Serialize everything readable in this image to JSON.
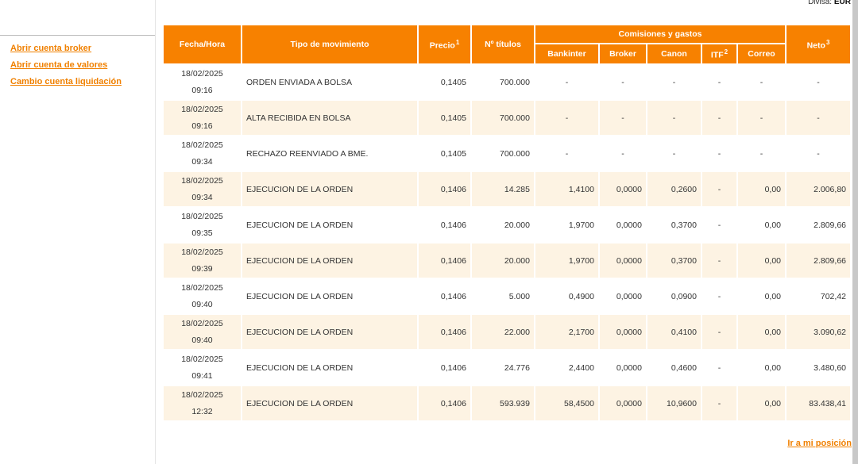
{
  "header": {
    "currency_label": "Divisa:",
    "currency": "EUR"
  },
  "sidebar": {
    "links": [
      "Abrir cuenta broker",
      "Abrir cuenta de valores",
      "Cambio cuenta liquidación"
    ]
  },
  "table": {
    "columns": [
      {
        "label": "Fecha/Hora"
      },
      {
        "label": "Tipo de movimiento"
      },
      {
        "label": "Precio",
        "note": "1"
      },
      {
        "label": "Nº títulos"
      },
      {
        "label": "Neto",
        "note": "3"
      }
    ],
    "group": {
      "label": "Comisiones y gastos",
      "columns": [
        {
          "label": "Bankinter"
        },
        {
          "label": "Broker"
        },
        {
          "label": "Canon"
        },
        {
          "label": "ITF",
          "note": "2"
        },
        {
          "label": "Correo"
        }
      ]
    },
    "rows": [
      [
        "18/02/2025",
        "09:16",
        "ORDEN ENVIADA A BOLSA",
        "0,1405",
        "700.000",
        "-",
        "-",
        "-",
        "-",
        "-",
        "-"
      ],
      [
        "18/02/2025",
        "09:16",
        "ALTA RECIBIDA EN BOLSA",
        "0,1405",
        "700.000",
        "-",
        "-",
        "-",
        "-",
        "-",
        "-"
      ],
      [
        "18/02/2025",
        "09:34",
        "RECHAZO REENVIADO A BME.",
        "0,1405",
        "700.000",
        "-",
        "-",
        "-",
        "-",
        "-",
        "-"
      ],
      [
        "18/02/2025",
        "09:34",
        "EJECUCION DE LA ORDEN",
        "0,1406",
        "14.285",
        "1,4100",
        "0,0000",
        "0,2600",
        "-",
        "0,00",
        "2.006,80"
      ],
      [
        "18/02/2025",
        "09:35",
        "EJECUCION DE LA ORDEN",
        "0,1406",
        "20.000",
        "1,9700",
        "0,0000",
        "0,3700",
        "-",
        "0,00",
        "2.809,66"
      ],
      [
        "18/02/2025",
        "09:39",
        "EJECUCION DE LA ORDEN",
        "0,1406",
        "20.000",
        "1,9700",
        "0,0000",
        "0,3700",
        "-",
        "0,00",
        "2.809,66"
      ],
      [
        "18/02/2025",
        "09:40",
        "EJECUCION DE LA ORDEN",
        "0,1406",
        "5.000",
        "0,4900",
        "0,0000",
        "0,0900",
        "-",
        "0,00",
        "702,42"
      ],
      [
        "18/02/2025",
        "09:40",
        "EJECUCION DE LA ORDEN",
        "0,1406",
        "22.000",
        "2,1700",
        "0,0000",
        "0,4100",
        "-",
        "0,00",
        "3.090,62"
      ],
      [
        "18/02/2025",
        "09:41",
        "EJECUCION DE LA ORDEN",
        "0,1406",
        "24.776",
        "2,4400",
        "0,0000",
        "0,4600",
        "-",
        "0,00",
        "3.480,60"
      ],
      [
        "18/02/2025",
        "12:32",
        "EJECUCION DE LA ORDEN",
        "0,1406",
        "593.939",
        "58,4500",
        "0,0000",
        "10,9600",
        "-",
        "0,00",
        "83.438,41"
      ]
    ]
  },
  "footer": {
    "link": "Ir a mi posición"
  }
}
